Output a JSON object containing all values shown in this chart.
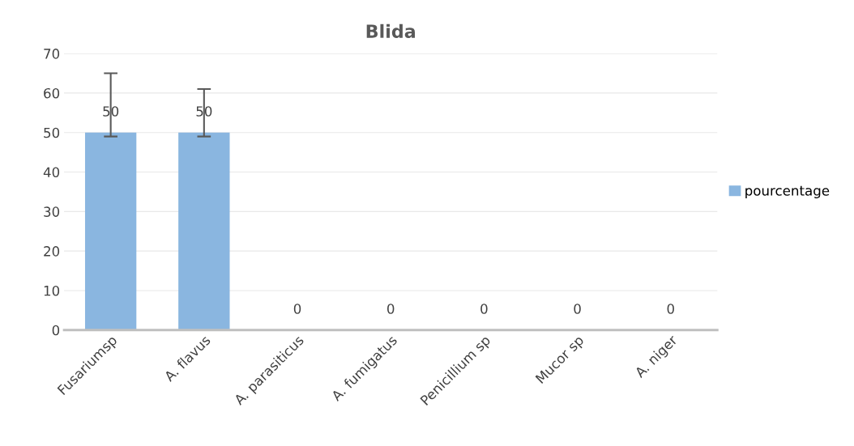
{
  "chart_data": {
    "type": "bar",
    "title": "Blida",
    "categories": [
      "Fusariumsp",
      "A. flavus",
      "A. parasiticus",
      "A. fumigatus",
      "Penicillium sp",
      "Mucor sp",
      "A. niger"
    ],
    "series": [
      {
        "name": "pourcentage",
        "color": "#8ab6e0",
        "values": [
          50,
          50,
          0,
          0,
          0,
          0,
          0
        ],
        "errors": [
          [
            49,
            65
          ],
          [
            49,
            61
          ],
          null,
          null,
          null,
          null,
          null
        ]
      }
    ],
    "ylim": [
      0,
      70
    ],
    "yticks": [
      0,
      10,
      20,
      30,
      40,
      50,
      60,
      70
    ],
    "grid": "y",
    "legend": "right",
    "data_labels": true
  }
}
